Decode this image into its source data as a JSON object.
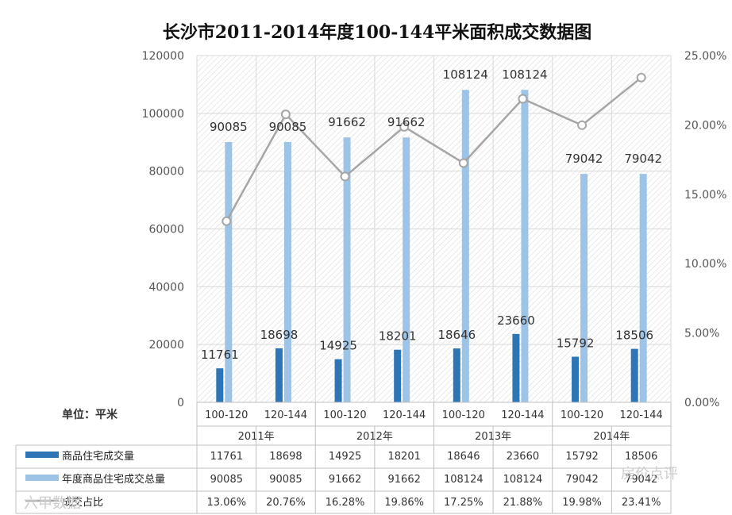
{
  "chart_data": {
    "type": "bar",
    "title": "长沙市2011-2014年度100-144平米面积成交数据图",
    "unit_label": "单位：平米",
    "years": [
      "2011年",
      "2012年",
      "2013年",
      "2014年"
    ],
    "categories": [
      "100-120",
      "120-144",
      "100-120",
      "120-144",
      "100-120",
      "120-144",
      "100-120",
      "120-144"
    ],
    "ylim": [
      0,
      120000
    ],
    "yticks": [
      "0",
      "20000",
      "40000",
      "60000",
      "80000",
      "100000",
      "120000"
    ],
    "y2lim": [
      0,
      25
    ],
    "y2ticks": [
      "0.00%",
      "5.00%",
      "10.00%",
      "15.00%",
      "20.00%",
      "25.00%"
    ],
    "series": [
      {
        "name": "商品住宅成交量",
        "kind": "bar",
        "color": "#2e75b6",
        "values": [
          11761,
          18698,
          14925,
          18201,
          18646,
          23660,
          15792,
          18506
        ],
        "labels": [
          "11761",
          "18698",
          "14925",
          "18201",
          "18646",
          "23660",
          "15792",
          "18506"
        ]
      },
      {
        "name": "年度商品住宅成交总量",
        "kind": "bar",
        "color": "#9dc3e6",
        "values": [
          90085,
          90085,
          91662,
          91662,
          108124,
          108124,
          79042,
          79042
        ],
        "labels": [
          "90085",
          "90085",
          "91662",
          "91662",
          "108124",
          "108124",
          "79042",
          "79042"
        ]
      },
      {
        "name": "成交占比",
        "kind": "line",
        "axis": "secondary",
        "color": "#a6a6a6",
        "values": [
          13.06,
          20.76,
          16.28,
          19.86,
          17.25,
          21.88,
          19.98,
          23.41
        ],
        "labels": [
          "13.06%",
          "20.76%",
          "16.28%",
          "19.86%",
          "17.25%",
          "21.88%",
          "19.98%",
          "23.41%"
        ]
      }
    ]
  },
  "watermarks": {
    "left": "六甲数据",
    "right": "房价点评"
  }
}
